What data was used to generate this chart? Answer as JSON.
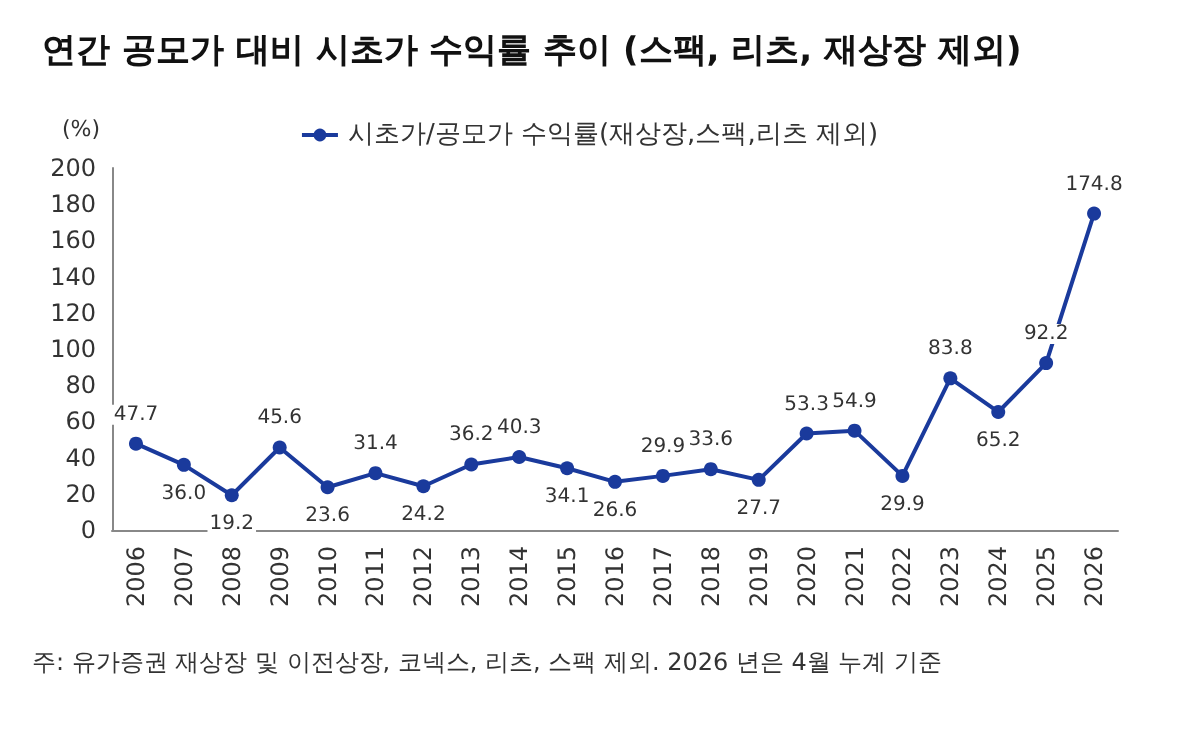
{
  "chart_data": {
    "type": "line",
    "title": "연간 공모가 대비 시초가 수익률 추이 (스팩, 리츠, 재상장 제외)",
    "ylabel": "(%)",
    "categories": [
      "2006",
      "2007",
      "2008",
      "2009",
      "2010",
      "2011",
      "2012",
      "2013",
      "2014",
      "2015",
      "2016",
      "2017",
      "2018",
      "2019",
      "2020",
      "2021",
      "2022",
      "2023",
      "2024",
      "2025",
      "2026"
    ],
    "series": [
      {
        "name": "시초가/공모가 수익률(재상장,스팩,리츠 제외)",
        "color": "#1a3a9c",
        "values": [
          47.7,
          36.0,
          19.2,
          45.6,
          23.6,
          31.4,
          24.2,
          36.2,
          40.3,
          34.1,
          26.6,
          29.9,
          33.6,
          27.7,
          53.3,
          54.9,
          29.9,
          83.8,
          65.2,
          92.2,
          174.8
        ],
        "value_labels": [
          "47.7",
          "36.0",
          "19.2",
          "45.6",
          "23.6",
          "31.4",
          "24.2",
          "36.2",
          "40.3",
          "34.1",
          "26.6",
          "29.9",
          "33.6",
          "27.7",
          "53.3",
          "54.9",
          "29.9",
          "83.8",
          "65.2",
          "92.2",
          "174.8"
        ]
      }
    ],
    "ylim": [
      0,
      200
    ],
    "yticks": [
      0,
      20,
      40,
      60,
      80,
      100,
      120,
      140,
      160,
      180,
      200
    ],
    "grid": false,
    "legend": "top",
    "marker": "circle",
    "line_style": "solid",
    "annotations": [
      "주: 유가증권 재상장 및 이전상장, 코넥스, 리츠, 스팩 제외. 2026 년은 4월 누계 기준"
    ]
  }
}
